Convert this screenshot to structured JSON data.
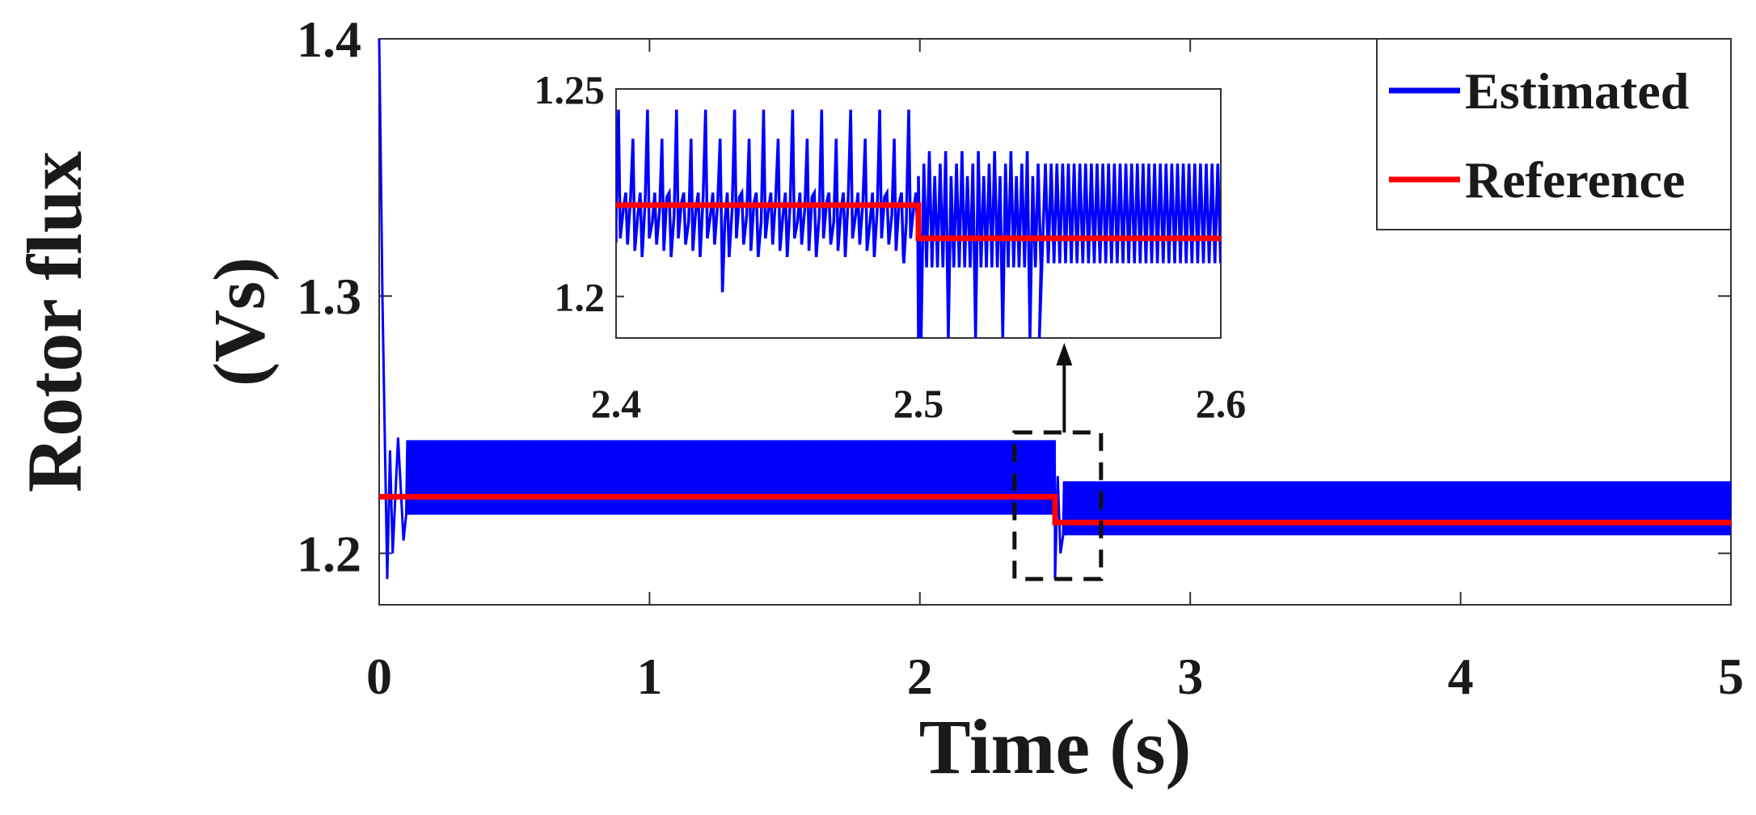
{
  "chart_data": {
    "type": "line",
    "xlabel": "Time (s)",
    "ylabel_line1": "Rotor flux",
    "ylabel_line2": "(Vs)",
    "xlim": [
      0,
      5
    ],
    "ylim": [
      1.18,
      1.4
    ],
    "x_ticks": [
      "0",
      "1",
      "2",
      "3",
      "4",
      "5"
    ],
    "y_ticks": [
      "1.2",
      "1.3",
      "1.4"
    ],
    "grid": false,
    "legend_position": "top-right",
    "colors": {
      "estimated": "#0000ff",
      "reference": "#ff0000",
      "axis": "#333333"
    },
    "series": [
      {
        "name": "Estimated",
        "color": "#0000ff",
        "description_points": {
          "initial_peak": 1.4,
          "ripple_before_step": [
            1.211,
            1.244
          ],
          "ripple_after_step": [
            1.207,
            1.228
          ]
        }
      },
      {
        "name": "Reference",
        "color": "#ff0000",
        "x": [
          0,
          2.5,
          2.5,
          5
        ],
        "y": [
          1.222,
          1.222,
          1.212,
          1.212
        ]
      }
    ],
    "inset": {
      "xlim": [
        2.4,
        2.6
      ],
      "ylim": [
        1.19,
        1.25
      ],
      "x_ticks": [
        "2.4",
        "2.5",
        "2.6"
      ],
      "y_ticks": [
        "1.2",
        "1.25"
      ],
      "zoom_box_x": [
        2.35,
        2.67
      ],
      "zoom_box_y": [
        1.19,
        1.247
      ]
    }
  }
}
